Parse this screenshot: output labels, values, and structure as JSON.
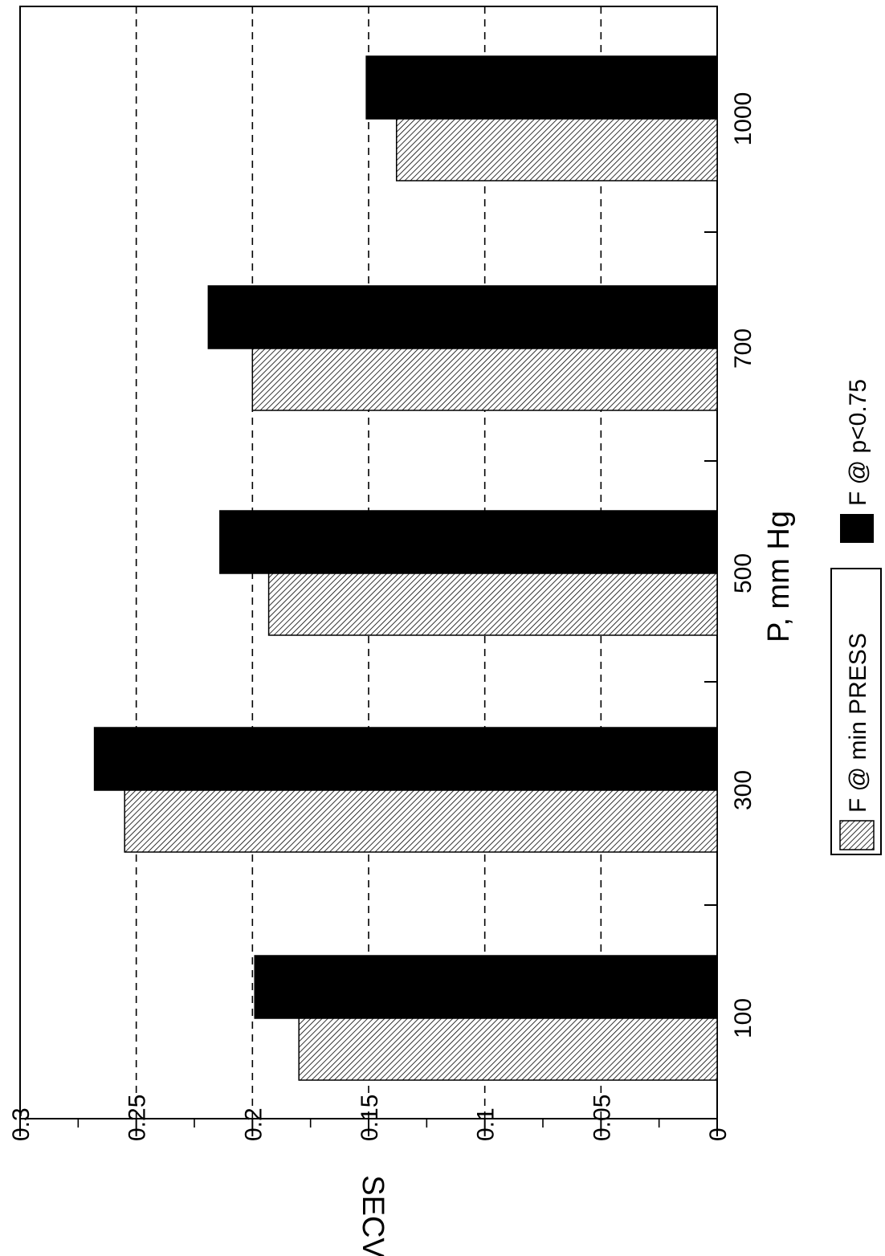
{
  "chart_data": {
    "type": "bar",
    "orientation": "horizontal-bars, rotated page",
    "xlabel": "P, mm Hg",
    "ylabel": "SECV",
    "categories": [
      "100",
      "300",
      "500",
      "700",
      "1000"
    ],
    "series": [
      {
        "name": "F @ min PRESS",
        "values": [
          0.18,
          0.255,
          0.193,
          0.2,
          0.138
        ],
        "fill": "hatched"
      },
      {
        "name": "F @ p<0.75",
        "values": [
          0.199,
          0.268,
          0.214,
          0.219,
          0.151
        ],
        "fill": "#000000"
      }
    ],
    "ylim": [
      0,
      0.3
    ],
    "yticks": [
      "0",
      "0.05",
      "0.1",
      "0.15",
      "0.2",
      "0.25",
      "0.3"
    ],
    "grid": "dashed at major value ticks",
    "legend_position": "bottom-right"
  }
}
